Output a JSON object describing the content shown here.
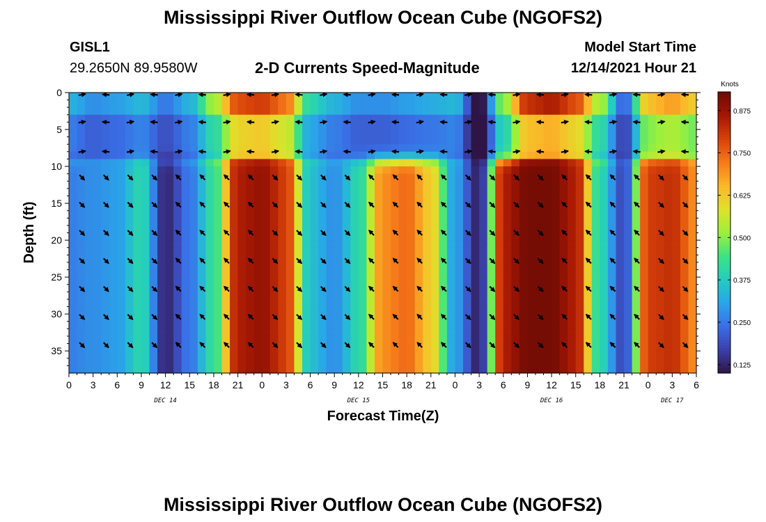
{
  "header": {
    "title": "Mississippi River Outflow Ocean Cube (NGOFS2)",
    "station_id": "GISL1",
    "station_coords": "29.2650N  89.9580W",
    "subtitle": "2-D Currents Speed-Magnitude",
    "model_start_label": "Model Start Time",
    "model_start_value": "12/14/2021 Hour 21"
  },
  "footer": {
    "title_repeat": "Mississippi River Outflow Ocean Cube (NGOFS2)"
  },
  "chart_data": {
    "type": "heatmap",
    "title": "2-D Currents Speed-Magnitude",
    "xlabel": "Forecast Time(Z)",
    "ylabel": "Depth (ft)",
    "x_range_hours": [
      0,
      78
    ],
    "x_start": "DEC 14 00Z",
    "x_tick_hours": [
      0,
      3,
      6,
      9,
      12,
      15,
      18,
      21,
      24,
      27,
      30,
      33,
      36,
      39,
      42,
      45,
      48,
      51,
      54,
      57,
      60,
      63,
      66,
      69,
      72,
      75,
      78
    ],
    "x_tick_labels": [
      "0",
      "3",
      "6",
      "9",
      "12",
      "15",
      "18",
      "21",
      "0",
      "3",
      "6",
      "9",
      "12",
      "15",
      "18",
      "21",
      "0",
      "3",
      "6",
      "9",
      "12",
      "15",
      "18",
      "21",
      "0",
      "3",
      "6"
    ],
    "date_labels": [
      {
        "label": "DEC 14",
        "hour": 12
      },
      {
        "label": "DEC 15",
        "hour": 36
      },
      {
        "label": "DEC 16",
        "hour": 60
      },
      {
        "label": "DEC 17",
        "hour": 75
      }
    ],
    "y_range_ft": [
      0,
      38
    ],
    "y_inverted": true,
    "y_tick_values": [
      0,
      5,
      10,
      15,
      20,
      25,
      30,
      35
    ],
    "y_tick_labels": [
      "0",
      "5",
      "10",
      "15",
      "20",
      "25",
      "30",
      "35"
    ],
    "colorbar": {
      "label": "Knots",
      "range": [
        0.1,
        0.93
      ],
      "ticks": [
        0.125,
        0.25,
        0.375,
        0.5,
        0.625,
        0.75,
        0.875
      ],
      "tick_labels": [
        "0.125",
        "0.250",
        "0.375",
        "0.500",
        "0.625",
        "0.750",
        "0.875"
      ],
      "colors": [
        "#2e1545",
        "#3b3fa8",
        "#3a6ee6",
        "#2aa5e8",
        "#24cdc0",
        "#3ee283",
        "#9cf03c",
        "#dfe22b",
        "#fbb829",
        "#f67a1a",
        "#d7420a",
        "#a51704",
        "#6e0b04"
      ]
    },
    "depth_levels_ft": [
      0,
      3.8,
      8.0,
      11.5,
      15.2,
      19.0,
      22.8,
      26.6,
      30.4,
      34.2,
      38.0
    ],
    "time_hours": [
      0,
      3,
      6,
      9,
      12,
      15,
      18,
      21,
      24,
      27,
      30,
      33,
      36,
      39,
      42,
      45,
      48,
      51,
      54,
      57,
      60,
      63,
      66,
      69,
      72,
      75,
      78
    ],
    "surface_speed_knots_by_time": [
      0.33,
      0.28,
      0.3,
      0.34,
      0.25,
      0.33,
      0.52,
      0.78,
      0.8,
      0.73,
      0.4,
      0.33,
      0.28,
      0.28,
      0.3,
      0.32,
      0.34,
      0.08,
      0.5,
      0.82,
      0.85,
      0.78,
      0.53,
      0.22,
      0.64,
      0.68,
      0.62
    ],
    "subsurface_speed_knots_by_time": [
      0.26,
      0.28,
      0.3,
      0.4,
      0.13,
      0.25,
      0.42,
      0.85,
      0.88,
      0.8,
      0.35,
      0.28,
      0.4,
      0.7,
      0.74,
      0.62,
      0.3,
      0.12,
      0.85,
      0.92,
      0.92,
      0.85,
      0.4,
      0.18,
      0.8,
      0.82,
      0.7
    ],
    "arrow_times_hours": [
      3,
      6,
      9,
      12,
      15,
      18,
      21,
      24,
      27,
      30,
      33,
      36,
      39,
      42,
      45,
      48,
      51,
      54,
      57,
      60,
      63,
      66,
      69,
      72,
      75,
      78
    ],
    "arrow_depths_ft": [
      0,
      4,
      8,
      11.5,
      15.2,
      19,
      22.8,
      26.6,
      30.4,
      34.2
    ]
  }
}
